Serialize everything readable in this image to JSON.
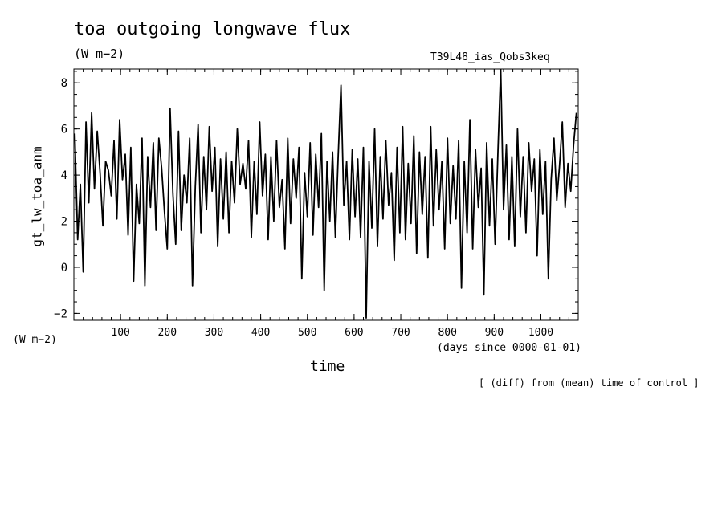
{
  "header": {
    "title": "toa outgoing longwave flux",
    "units": "(W m−2)",
    "run_name": "T39L48_ias_Qobs3keq",
    "y_units": "(W m−2)",
    "x_units": "(days since 0000-01-01)",
    "note": "[ (diff) from (mean) time of control ]"
  },
  "chart_data": {
    "type": "line",
    "title": "toa outgoing longwave flux",
    "subtitle": "(W m−2)",
    "xlabel": "time",
    "ylabel": "gt_lw_toa_anm",
    "xlim": [
      0,
      1080
    ],
    "ylim": [
      -2.3,
      8.6
    ],
    "xticks": [
      100,
      200,
      300,
      400,
      500,
      600,
      700,
      800,
      900,
      1000
    ],
    "yticks": [
      -2,
      0,
      2,
      4,
      6,
      8
    ],
    "grid": false,
    "series": [
      {
        "values_note_x_step_days": 6,
        "x": [
          2,
          8,
          14,
          20,
          26,
          32,
          38,
          44,
          50,
          56,
          62,
          68,
          74,
          80,
          86,
          92,
          98,
          104,
          110,
          116,
          122,
          128,
          134,
          140,
          146,
          152,
          158,
          164,
          170,
          176,
          182,
          188,
          194,
          200,
          206,
          212,
          218,
          224,
          230,
          236,
          242,
          248,
          254,
          260,
          266,
          272,
          278,
          284,
          290,
          296,
          302,
          308,
          314,
          320,
          326,
          332,
          338,
          344,
          350,
          356,
          362,
          368,
          374,
          380,
          386,
          392,
          398,
          404,
          410,
          416,
          422,
          428,
          434,
          440,
          446,
          452,
          458,
          464,
          470,
          476,
          482,
          488,
          494,
          500,
          506,
          512,
          518,
          524,
          530,
          536,
          542,
          548,
          554,
          560,
          566,
          572,
          578,
          584,
          590,
          596,
          602,
          608,
          614,
          620,
          626,
          632,
          638,
          644,
          650,
          656,
          662,
          668,
          674,
          680,
          686,
          692,
          698,
          704,
          710,
          716,
          722,
          728,
          734,
          740,
          746,
          752,
          758,
          764,
          770,
          776,
          782,
          788,
          794,
          800,
          806,
          812,
          818,
          824,
          830,
          836,
          842,
          848,
          854,
          860,
          866,
          872,
          878,
          884,
          890,
          896,
          902,
          908,
          914,
          920,
          926,
          932,
          938,
          944,
          950,
          956,
          962,
          968,
          974,
          980,
          986,
          992,
          998,
          1004,
          1010,
          1016,
          1022,
          1028,
          1034,
          1040,
          1046,
          1052,
          1058,
          1064,
          1070,
          1076
        ],
        "y": [
          5.8,
          1.2,
          3.6,
          -0.2,
          6.3,
          2.8,
          6.7,
          3.4,
          5.9,
          4.1,
          1.8,
          4.6,
          4.2,
          3.1,
          5.5,
          2.1,
          6.4,
          3.8,
          4.9,
          1.4,
          5.2,
          -0.6,
          3.6,
          1.9,
          5.6,
          -0.8,
          4.8,
          2.6,
          5.4,
          1.6,
          5.6,
          4.3,
          2.4,
          0.8,
          6.9,
          3.2,
          1.0,
          5.9,
          1.6,
          4.0,
          2.8,
          5.6,
          -0.8,
          3.5,
          6.2,
          1.5,
          4.8,
          2.5,
          6.1,
          3.3,
          5.2,
          0.9,
          4.7,
          2.1,
          5.0,
          1.5,
          4.6,
          2.8,
          6.0,
          3.6,
          4.5,
          3.4,
          5.5,
          1.3,
          4.6,
          2.3,
          6.3,
          3.1,
          4.9,
          1.2,
          4.8,
          2.0,
          5.5,
          2.6,
          3.8,
          0.8,
          5.6,
          1.9,
          4.7,
          3.0,
          5.2,
          -0.5,
          4.1,
          2.2,
          5.4,
          1.4,
          4.9,
          2.6,
          5.8,
          -1.0,
          4.6,
          2.0,
          5.0,
          1.3,
          4.8,
          7.9,
          2.7,
          4.6,
          1.2,
          5.1,
          2.2,
          4.7,
          1.3,
          5.2,
          -2.2,
          4.6,
          1.7,
          6.0,
          0.9,
          4.8,
          2.1,
          5.5,
          2.7,
          4.1,
          0.3,
          5.2,
          1.5,
          6.1,
          1.2,
          4.5,
          1.9,
          5.7,
          0.6,
          5.0,
          2.3,
          4.8,
          0.4,
          6.1,
          1.8,
          5.1,
          2.5,
          4.6,
          0.8,
          5.6,
          1.9,
          4.4,
          2.1,
          5.5,
          -0.9,
          4.6,
          1.5,
          6.4,
          0.8,
          5.1,
          2.6,
          4.3,
          -1.2,
          5.4,
          1.8,
          4.7,
          1.0,
          5.0,
          8.6,
          2.5,
          5.3,
          1.2,
          4.8,
          0.9,
          6.0,
          2.2,
          4.8,
          1.5,
          5.4,
          3.3,
          4.7,
          0.5,
          5.1,
          2.3,
          4.6,
          -0.5,
          3.8,
          5.6,
          2.9,
          4.4,
          6.3,
          2.6,
          4.5,
          3.3,
          5.3,
          6.7
        ]
      }
    ]
  }
}
